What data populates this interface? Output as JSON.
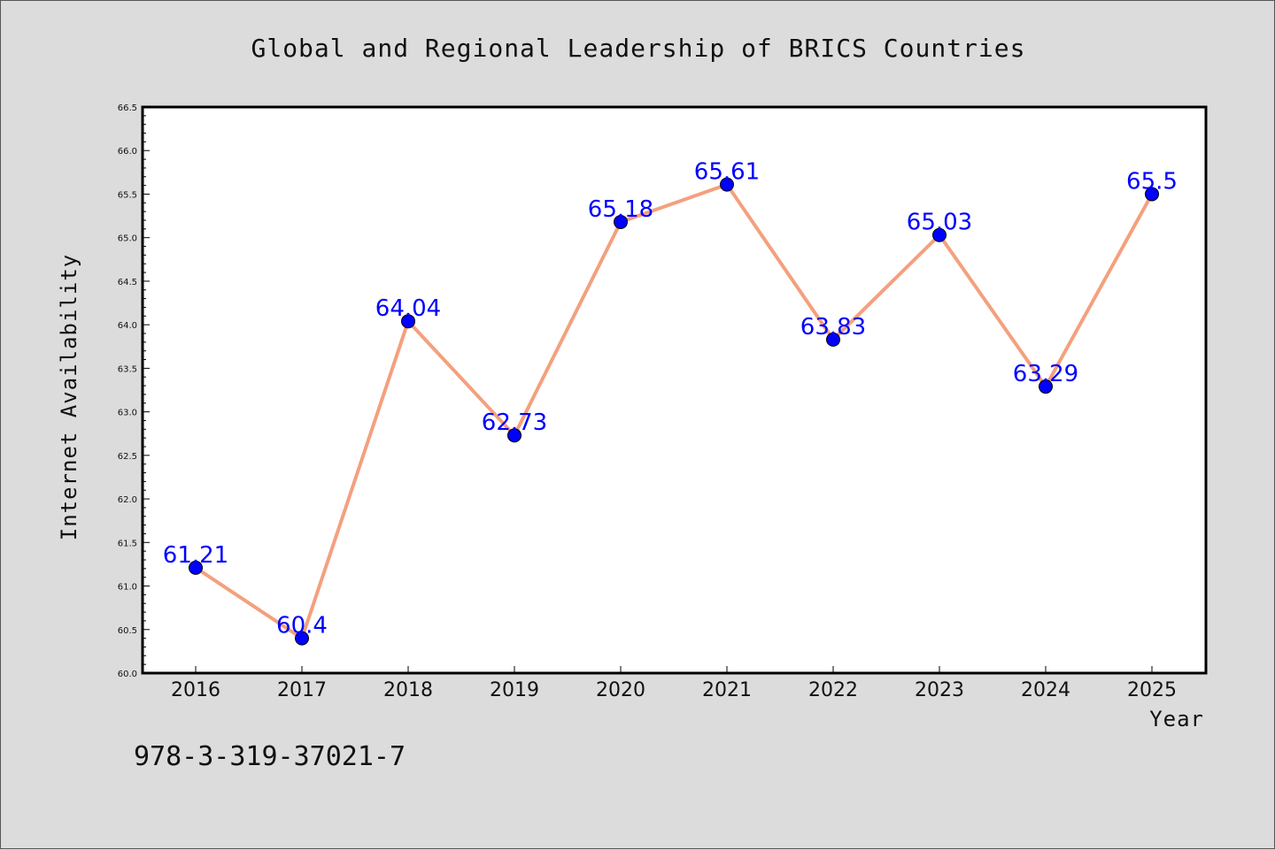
{
  "chart_data": {
    "type": "line",
    "title": "Global and Regional Leadership of BRICS Countries",
    "xlabel": "Year",
    "ylabel": "Internet Availability",
    "categories": [
      "2016",
      "2017",
      "2018",
      "2019",
      "2020",
      "2021",
      "2022",
      "2023",
      "2024",
      "2025"
    ],
    "series": [
      {
        "values": [
          61.21,
          60.4,
          64.04,
          62.73,
          65.18,
          65.61,
          63.83,
          65.03,
          63.29,
          65.5
        ],
        "data_labels": [
          "61.21",
          "60.4",
          "64.04",
          "62.73",
          "65.18",
          "65.61",
          "63.83",
          "65.03",
          "63.29",
          "65.5"
        ]
      }
    ],
    "ylim": [
      60.0,
      66.5
    ],
    "yticks": [
      "60.0",
      "60.5",
      "61.0",
      "61.5",
      "62.0",
      "62.5",
      "63.0",
      "63.5",
      "64.0",
      "64.5",
      "65.0",
      "65.5",
      "66.0",
      "66.5"
    ],
    "grid": false,
    "legend": "none",
    "colors": {
      "line": "#f4a07e",
      "marker": "#0000ff",
      "data_label": "#0000ff",
      "background": "#dcdcdc",
      "plot_background": "#ffffff"
    }
  },
  "footer": {
    "text": "978-3-319-37021-7"
  }
}
